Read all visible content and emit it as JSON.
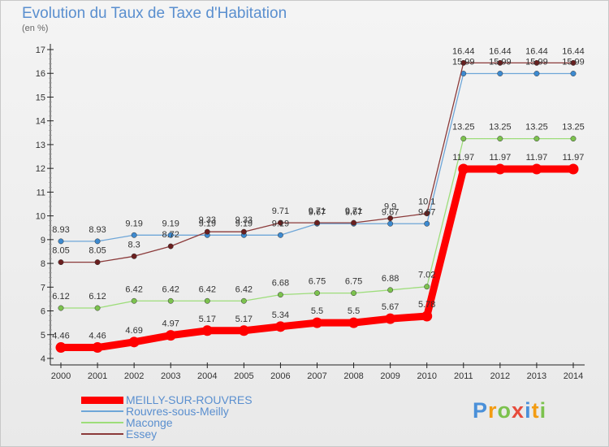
{
  "title": "Evolution du Taux de Taxe d'Habitation",
  "unit": "(en %)",
  "logo": {
    "text": "Proxiti",
    "colors": [
      "#4a90d9",
      "#f39c12",
      "#7cc24e",
      "#e74c3c",
      "#4a90d9",
      "#f39c12",
      "#7cc24e"
    ]
  },
  "chart_data": {
    "type": "line",
    "x": [
      "2000",
      "2001",
      "2002",
      "2003",
      "2004",
      "2005",
      "2006",
      "2007",
      "2008",
      "2009",
      "2010",
      "2011",
      "2012",
      "2013",
      "2014"
    ],
    "ylim": [
      4,
      17
    ],
    "yticks": [
      4,
      5,
      6,
      7,
      8,
      9,
      10,
      11,
      12,
      13,
      14,
      15,
      16,
      17
    ],
    "grid": false,
    "legend_position": "bottom-left",
    "series": [
      {
        "name": "MEILLY-SUR-ROUVRES",
        "color": "#ff0000",
        "marker": "#ff0000",
        "width": 9,
        "values": [
          4.46,
          4.46,
          4.69,
          4.97,
          5.17,
          5.17,
          5.34,
          5.5,
          5.5,
          5.67,
          5.78,
          11.97,
          11.97,
          11.97,
          11.97
        ],
        "labels": [
          "4.46",
          "4.46",
          "4.69",
          "4.97",
          "5.17",
          "5.17",
          "5.34",
          "5.5",
          "5.5",
          "5.67",
          "5.78",
          "11.97",
          "11.97",
          "11.97",
          "11.97"
        ]
      },
      {
        "name": "Rouvres-sous-Meilly",
        "color": "#6ea6d8",
        "marker": "#3d8ad0",
        "width": 1.3,
        "values": [
          8.93,
          8.93,
          9.19,
          9.19,
          9.19,
          9.19,
          9.19,
          9.67,
          9.67,
          9.67,
          9.67,
          15.99,
          15.99,
          15.99,
          15.99
        ],
        "labels": [
          "8.93",
          "8.93",
          "9.19",
          "9.19",
          "9.19",
          "9.19",
          "9.19",
          "9.67",
          "9.67",
          "9.67",
          "9.67",
          "15.99",
          "15.99",
          "15.99",
          "15.99"
        ]
      },
      {
        "name": "Maconge",
        "color": "#9ddd7a",
        "marker": "#7cc24e",
        "width": 1.3,
        "values": [
          6.12,
          6.12,
          6.42,
          6.42,
          6.42,
          6.42,
          6.68,
          6.75,
          6.75,
          6.88,
          7.02,
          13.25,
          13.25,
          13.25,
          13.25
        ],
        "labels": [
          "6.12",
          "6.12",
          "6.42",
          "6.42",
          "6.42",
          "6.42",
          "6.68",
          "6.75",
          "6.75",
          "6.88",
          "7.02",
          "13.25",
          "13.25",
          "13.25",
          "13.25"
        ]
      },
      {
        "name": "Essey",
        "color": "#8b3a3a",
        "marker": "#6b1f1f",
        "width": 1.3,
        "values": [
          8.05,
          8.05,
          8.3,
          8.72,
          9.33,
          9.33,
          9.71,
          9.71,
          9.71,
          9.9,
          10.1,
          16.44,
          16.44,
          16.44,
          16.44
        ],
        "labels": [
          "8.05",
          "8.05",
          "8.3",
          "8.72",
          "9.33",
          "9.33",
          "9.71",
          "9.71",
          "9.71",
          "9.9",
          "10.1",
          "16.44",
          "16.44",
          "16.44",
          "16.44"
        ]
      }
    ]
  }
}
